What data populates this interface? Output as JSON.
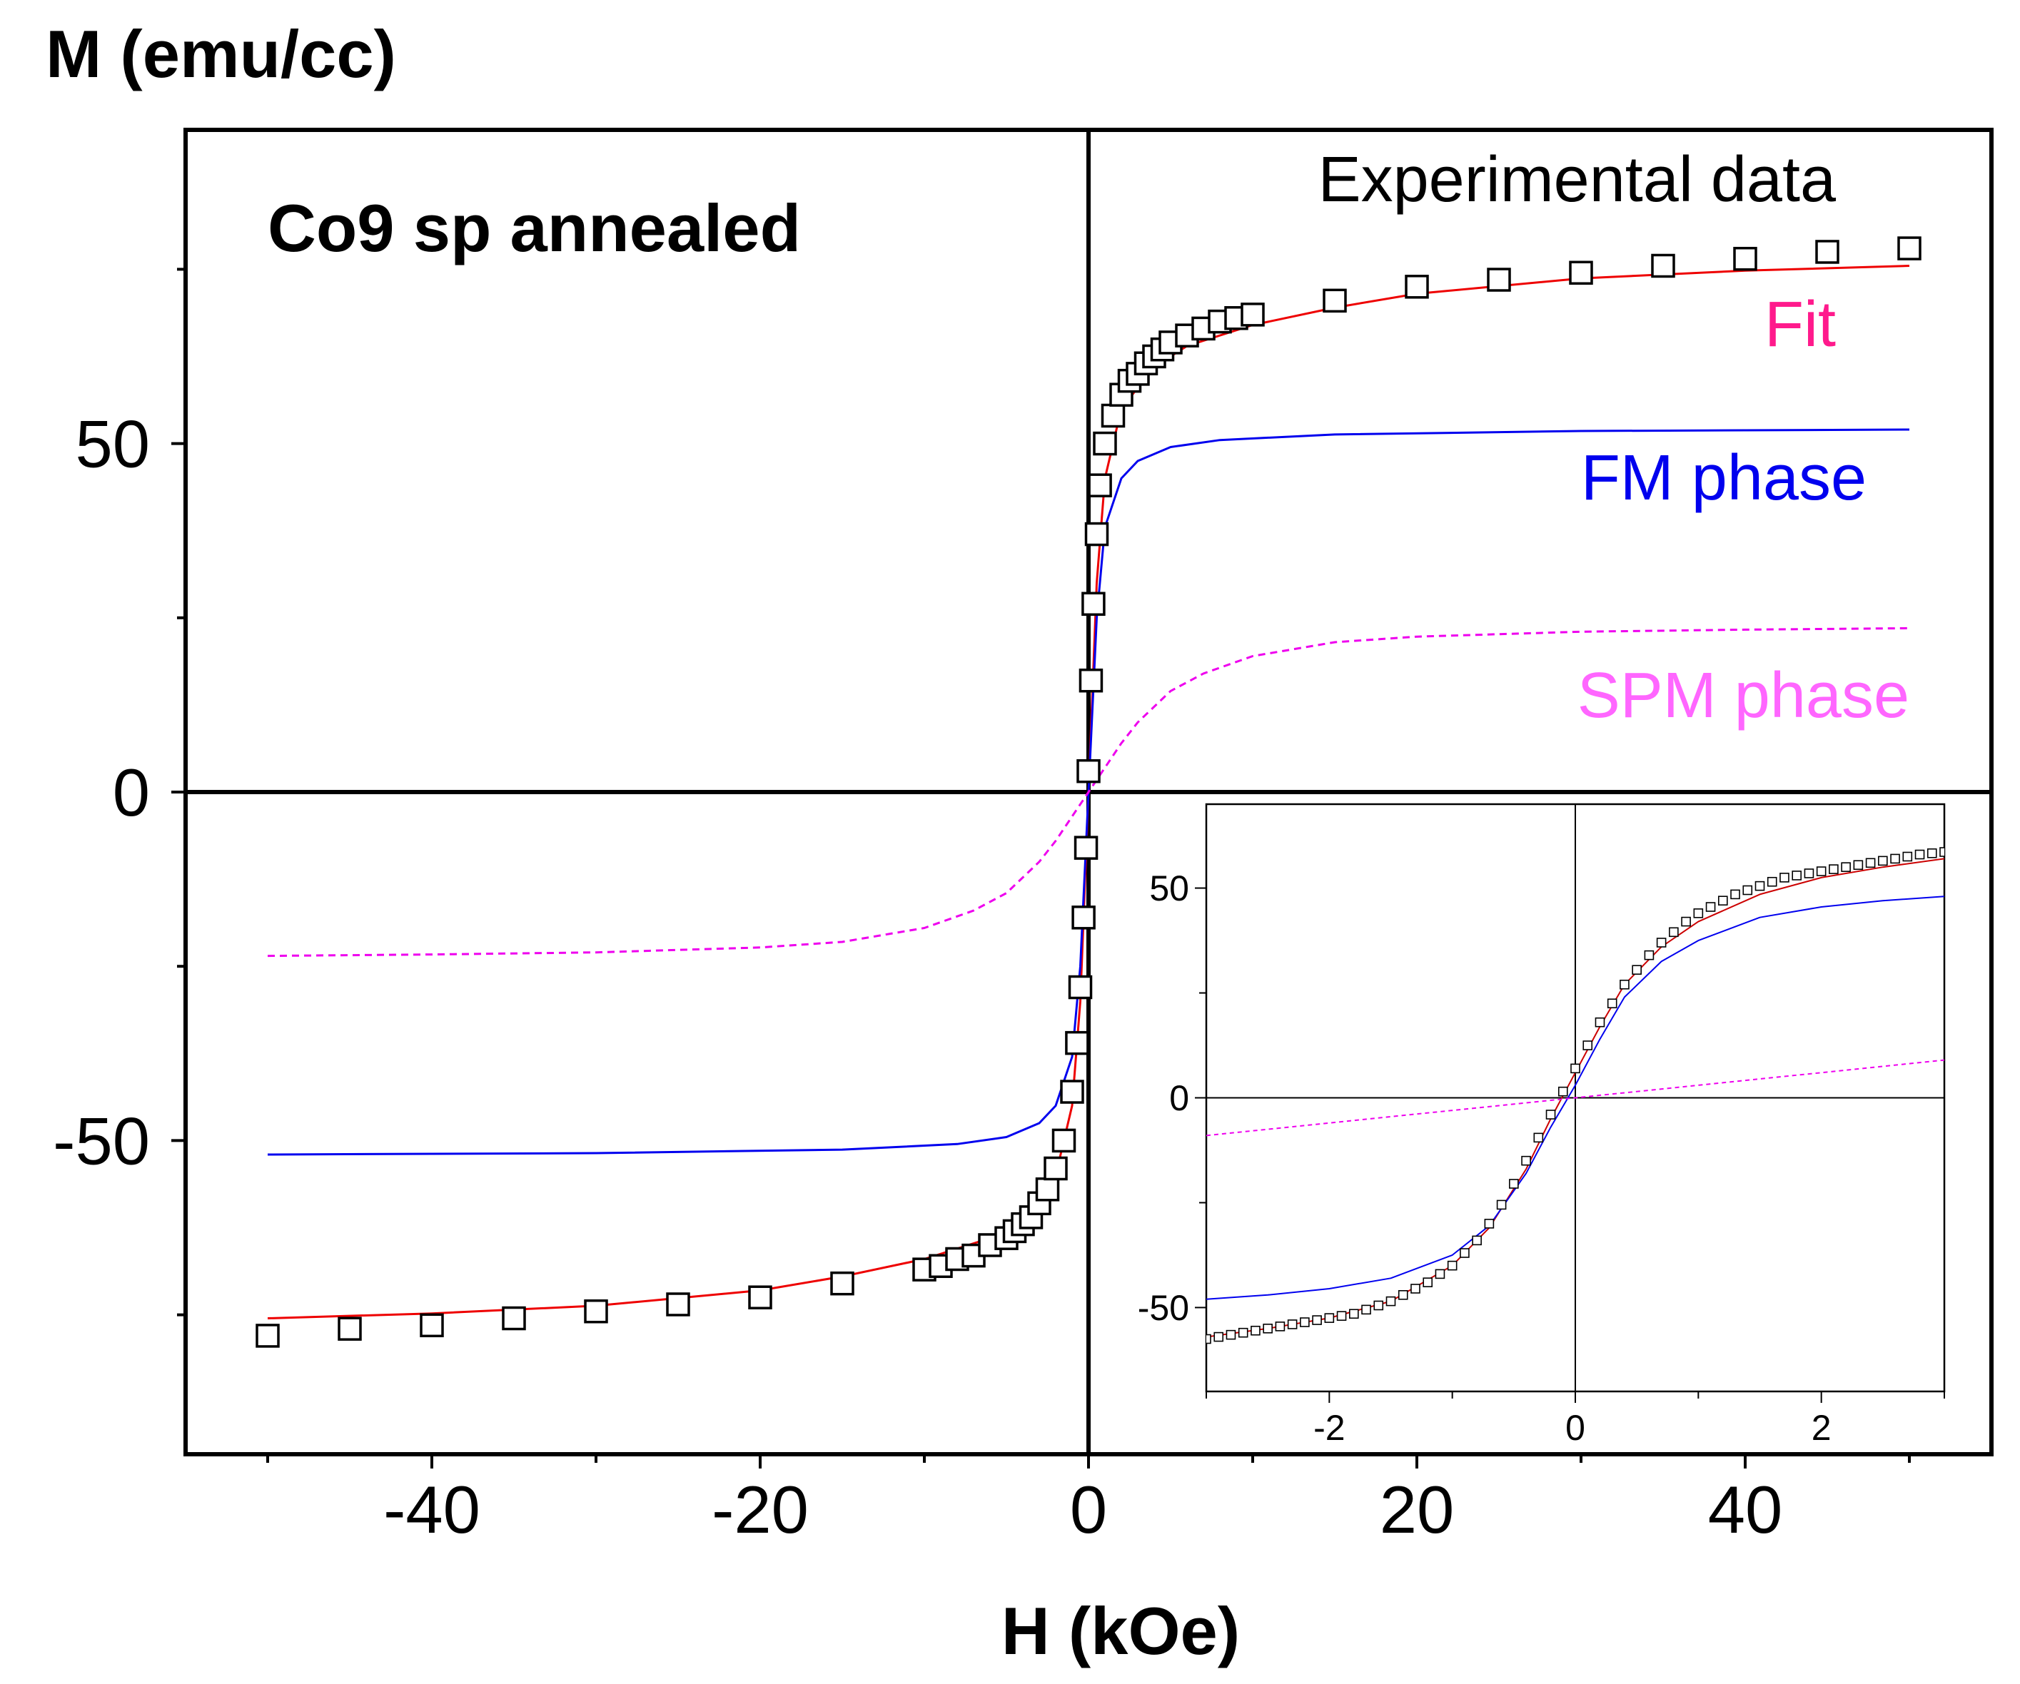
{
  "chart_data": {
    "type": "scatter",
    "title": "Co9 sp annealed",
    "xlabel": "H (kOe)",
    "ylabel": "M (emu/cc)",
    "xlim": [
      -55,
      55
    ],
    "ylim": [
      -95,
      95
    ],
    "xticks": [
      -40,
      -20,
      0,
      20,
      40
    ],
    "xtick_labels": [
      "-40",
      "-20",
      "0",
      "20",
      "40"
    ],
    "yticks": [
      -50,
      0,
      50
    ],
    "ytick_labels": [
      "-50",
      "0",
      "50"
    ],
    "legend": [
      {
        "label": "Experimental data",
        "color": "#000000"
      },
      {
        "label": "Fit",
        "color": "#ff1a8c"
      },
      {
        "label": "FM phase",
        "color": "#0000ee"
      },
      {
        "label": "SPM phase",
        "color": "#ff66ff"
      }
    ],
    "series": [
      {
        "name": "Experimental data",
        "style": "open-square",
        "color": "#000000",
        "x": [
          -50,
          -45,
          -40,
          -35,
          -30,
          -25,
          -20,
          -15,
          -10,
          -9,
          -8,
          -7,
          -6,
          -5,
          -4.5,
          -4,
          -3.5,
          -3,
          -2.5,
          -2,
          -1.5,
          -1,
          -0.7,
          -0.5,
          -0.3,
          -0.15,
          0,
          0.15,
          0.3,
          0.5,
          0.7,
          1,
          1.5,
          2,
          2.5,
          3,
          3.5,
          4,
          4.5,
          5,
          6,
          7,
          8,
          9,
          10,
          15,
          20,
          25,
          30,
          35,
          40,
          45,
          50
        ],
        "y": [
          -78,
          -77,
          -76.5,
          -75.5,
          -74.5,
          -73.5,
          -72.5,
          -70.5,
          -68.5,
          -68,
          -67,
          -66.5,
          -65,
          -64,
          -63,
          -62,
          -61,
          -59,
          -57,
          -54,
          -50,
          -43,
          -36,
          -28,
          -18,
          -8,
          3,
          16,
          27,
          37,
          44,
          50,
          54,
          57,
          59,
          60,
          61.5,
          62.5,
          63.5,
          64.5,
          65.5,
          66.5,
          67.5,
          68,
          68.5,
          70.5,
          72.5,
          73.5,
          74.5,
          75.5,
          76.5,
          77.5,
          78
        ]
      },
      {
        "name": "Fit",
        "style": "line",
        "color": "#ee0000",
        "x": [
          -50,
          -40,
          -30,
          -20,
          -15,
          -10,
          -6,
          -4,
          -2,
          -1,
          -0.5,
          0,
          0.5,
          1,
          2,
          4,
          6,
          10,
          15,
          20,
          30,
          40,
          50
        ],
        "y": [
          -75.5,
          -74.8,
          -73.7,
          -71.5,
          -69.5,
          -67,
          -64,
          -61,
          -55,
          -45,
          -30,
          0,
          30,
          45,
          55,
          61,
          64,
          67,
          69.5,
          71.5,
          73.7,
          74.8,
          75.5
        ]
      },
      {
        "name": "FM phase",
        "style": "line",
        "color": "#0000ee",
        "x": [
          -50,
          -30,
          -15,
          -8,
          -5,
          -3,
          -2,
          -1,
          -0.5,
          0,
          0.5,
          1,
          2,
          3,
          5,
          8,
          15,
          30,
          50
        ],
        "y": [
          -52,
          -51.8,
          -51.3,
          -50.5,
          -49.5,
          -47.5,
          -45,
          -38,
          -25,
          0,
          25,
          38,
          45,
          47.5,
          49.5,
          50.5,
          51.3,
          51.8,
          52
        ]
      },
      {
        "name": "SPM phase",
        "style": "dashed",
        "color": "#ee00ee",
        "x": [
          -50,
          -40,
          -30,
          -20,
          -15,
          -10,
          -7,
          -5,
          -3,
          -2,
          -1,
          0,
          1,
          2,
          3,
          5,
          7,
          10,
          15,
          20,
          30,
          40,
          50
        ],
        "y": [
          -23.5,
          -23.3,
          -23,
          -22.3,
          -21.5,
          -19.5,
          -17,
          -14.5,
          -10,
          -7,
          -3.5,
          0,
          3.5,
          7,
          10,
          14.5,
          17,
          19.5,
          21.5,
          22.3,
          23,
          23.3,
          23.5
        ]
      }
    ],
    "inset": {
      "xlim": [
        -3,
        3
      ],
      "ylim": [
        -70,
        70
      ],
      "xticks": [
        -2,
        0,
        2
      ],
      "xtick_labels": [
        "-2",
        "0",
        "2"
      ],
      "yticks": [
        -50,
        0,
        50
      ],
      "ytick_labels": [
        "-50",
        "0",
        "50"
      ],
      "series": [
        {
          "name": "Experimental data",
          "style": "open-square",
          "color": "#000000",
          "x": [
            -3,
            -2.9,
            -2.8,
            -2.7,
            -2.6,
            -2.5,
            -2.4,
            -2.3,
            -2.2,
            -2.1,
            -2.0,
            -1.9,
            -1.8,
            -1.7,
            -1.6,
            -1.5,
            -1.4,
            -1.3,
            -1.2,
            -1.1,
            -1.0,
            -0.9,
            -0.8,
            -0.7,
            -0.6,
            -0.5,
            -0.4,
            -0.3,
            -0.2,
            -0.1,
            0,
            0.1,
            0.2,
            0.3,
            0.4,
            0.5,
            0.6,
            0.7,
            0.8,
            0.9,
            1.0,
            1.1,
            1.2,
            1.3,
            1.4,
            1.5,
            1.6,
            1.7,
            1.8,
            1.9,
            2.0,
            2.1,
            2.2,
            2.3,
            2.4,
            2.5,
            2.6,
            2.7,
            2.8,
            2.9,
            3.0
          ],
          "y": [
            -57.5,
            -57,
            -56.5,
            -56,
            -55.5,
            -55,
            -54.5,
            -54,
            -53.5,
            -53,
            -52.5,
            -52,
            -51.5,
            -50.5,
            -49.5,
            -48.5,
            -47,
            -45.5,
            -44,
            -42,
            -40,
            -37,
            -34,
            -30,
            -25.5,
            -20.5,
            -15,
            -9.5,
            -4,
            1.5,
            7,
            12.5,
            18,
            22.5,
            27,
            30.5,
            34,
            37,
            39.5,
            42,
            44,
            45.5,
            47,
            48.5,
            49.5,
            50.5,
            51.5,
            52.5,
            53,
            53.5,
            54,
            54.5,
            55,
            55.5,
            56,
            56.5,
            57,
            57.5,
            58,
            58.3,
            58.6
          ]
        },
        {
          "name": "Fit",
          "style": "line",
          "color": "#cc0000",
          "x": [
            -3,
            -2.5,
            -2,
            -1.5,
            -1,
            -0.7,
            -0.4,
            -0.2,
            0,
            0.2,
            0.4,
            0.7,
            1,
            1.5,
            2,
            2.5,
            3
          ],
          "y": [
            -57,
            -55,
            -52.5,
            -48.5,
            -40,
            -31,
            -17,
            -5,
            6,
            17,
            27,
            36,
            42,
            48.5,
            52.5,
            55,
            57
          ]
        },
        {
          "name": "FM phase",
          "style": "line",
          "color": "#0000ee",
          "x": [
            -3,
            -2.5,
            -2,
            -1.5,
            -1,
            -0.7,
            -0.4,
            -0.2,
            0,
            0.2,
            0.4,
            0.7,
            1,
            1.5,
            2,
            2.5,
            3
          ],
          "y": [
            -48,
            -47,
            -45.5,
            -43,
            -37.5,
            -30.5,
            -18,
            -7,
            3,
            14,
            24,
            32.5,
            37.5,
            43,
            45.5,
            47,
            48
          ]
        },
        {
          "name": "SPM phase",
          "style": "dashed",
          "color": "#ee00ee",
          "x": [
            -3,
            3
          ],
          "y": [
            -9,
            9
          ]
        }
      ]
    }
  }
}
